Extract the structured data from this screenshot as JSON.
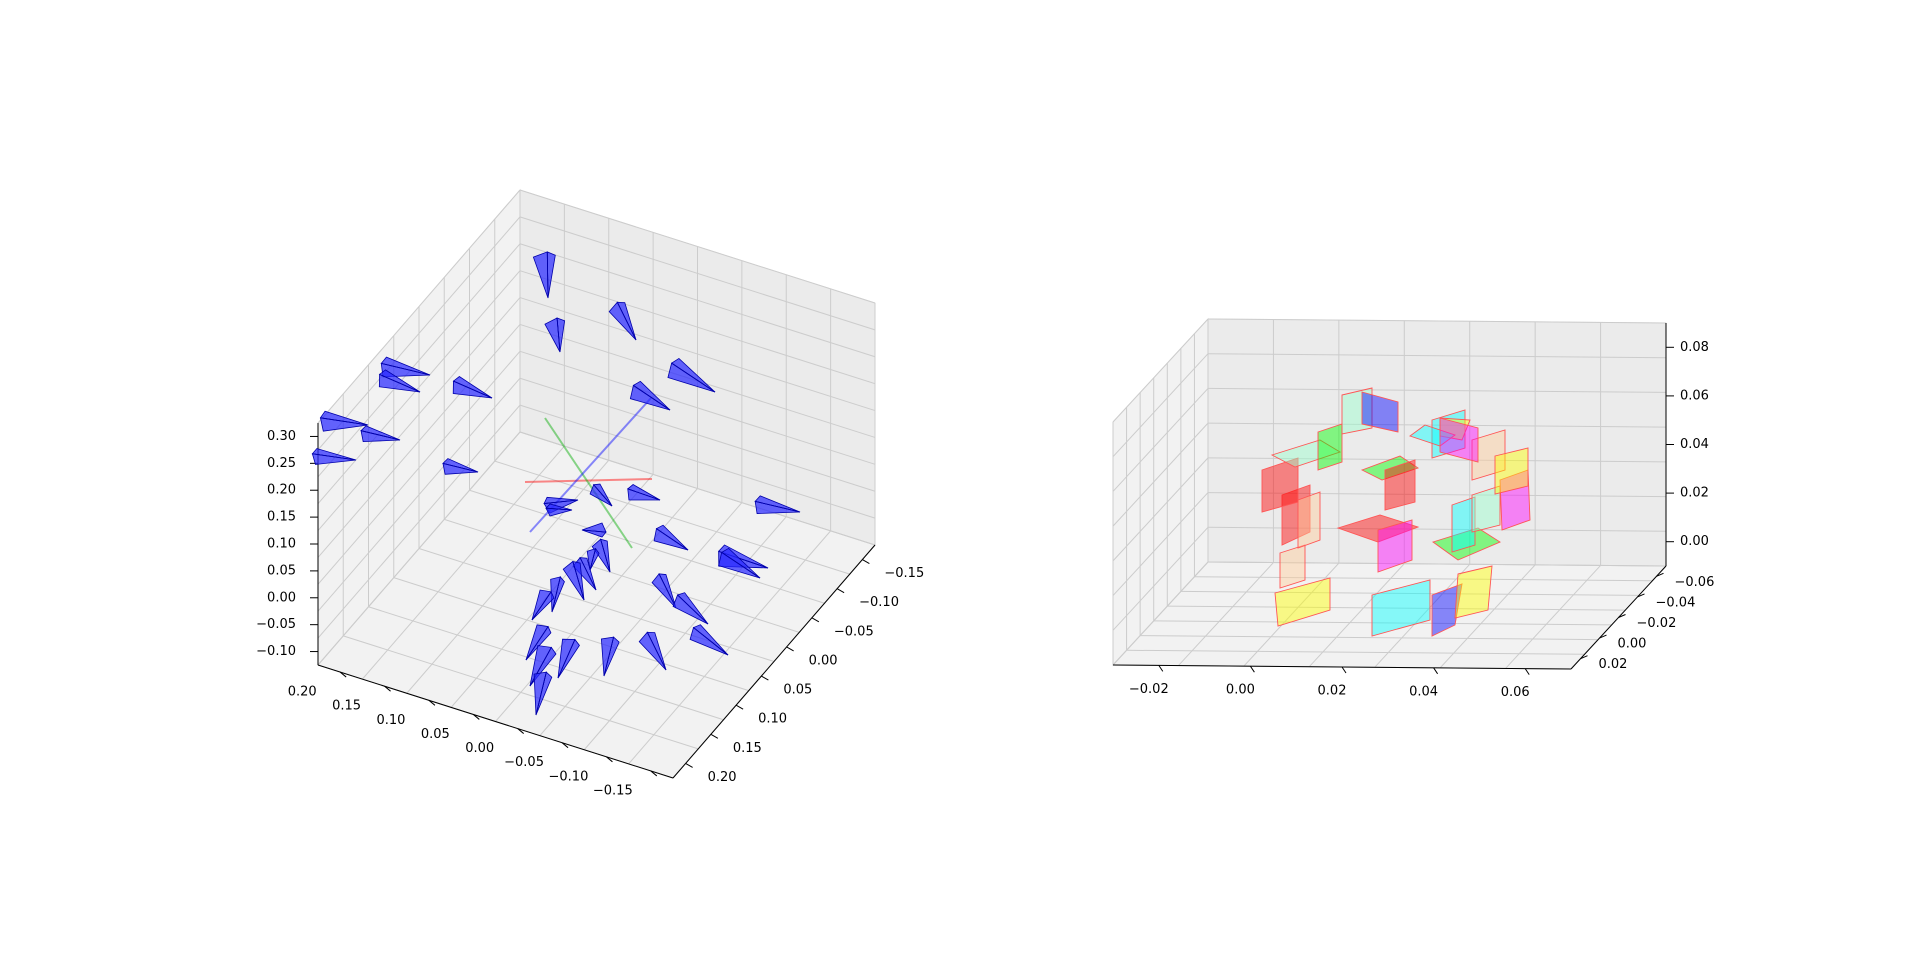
{
  "chart_data": [
    {
      "type": "scatter",
      "kind": "3d-camera-poses",
      "title": "",
      "axes": {
        "x": {
          "label": "",
          "ticks": [
            "0.20",
            "0.15",
            "0.10",
            "0.05",
            "0.00",
            "−0.05",
            "−0.10",
            "−0.15"
          ],
          "range": [
            -0.18,
            0.23
          ]
        },
        "y": {
          "label": "",
          "ticks": [
            "0.20",
            "0.15",
            "0.10",
            "0.05",
            "0.00",
            "−0.05",
            "−0.10",
            "−0.15"
          ],
          "range": [
            -0.17,
            0.22
          ]
        },
        "z": {
          "label": "",
          "ticks": [
            "0.30",
            "0.25",
            "0.20",
            "0.15",
            "0.10",
            "0.05",
            "0.00",
            "−0.05",
            "−0.10"
          ],
          "range": [
            -0.11,
            0.31
          ]
        }
      },
      "grid": true,
      "camera_color": "#0000ff",
      "origin_axes_colors": [
        "#ff0000",
        "#00aa00",
        "#0000ff"
      ],
      "camera_count": 36
    },
    {
      "type": "scatter",
      "kind": "3d-planar-patches",
      "title": "",
      "axes": {
        "x": {
          "label": "",
          "ticks": [
            "−0.02",
            "0.00",
            "0.02",
            "0.04",
            "0.06"
          ],
          "range": [
            -0.03,
            0.065
          ]
        },
        "y": {
          "label": "",
          "ticks": [
            "0.02",
            "0.00",
            "−0.02",
            "−0.04",
            "−0.06"
          ],
          "range": [
            -0.065,
            0.03
          ]
        },
        "z": {
          "label": "",
          "ticks": [
            "0.08",
            "0.06",
            "0.04",
            "0.02",
            "0.00"
          ],
          "range": [
            -0.01,
            0.088
          ]
        }
      },
      "grid": true,
      "edge_color": "#ff5555",
      "patch_colors": [
        "#ffff00",
        "#00ffff",
        "#ff0000",
        "#00ff00",
        "#0000ff",
        "#ff00ff",
        "#ffcc99",
        "#99ffcc"
      ],
      "patch_count": 24
    }
  ]
}
